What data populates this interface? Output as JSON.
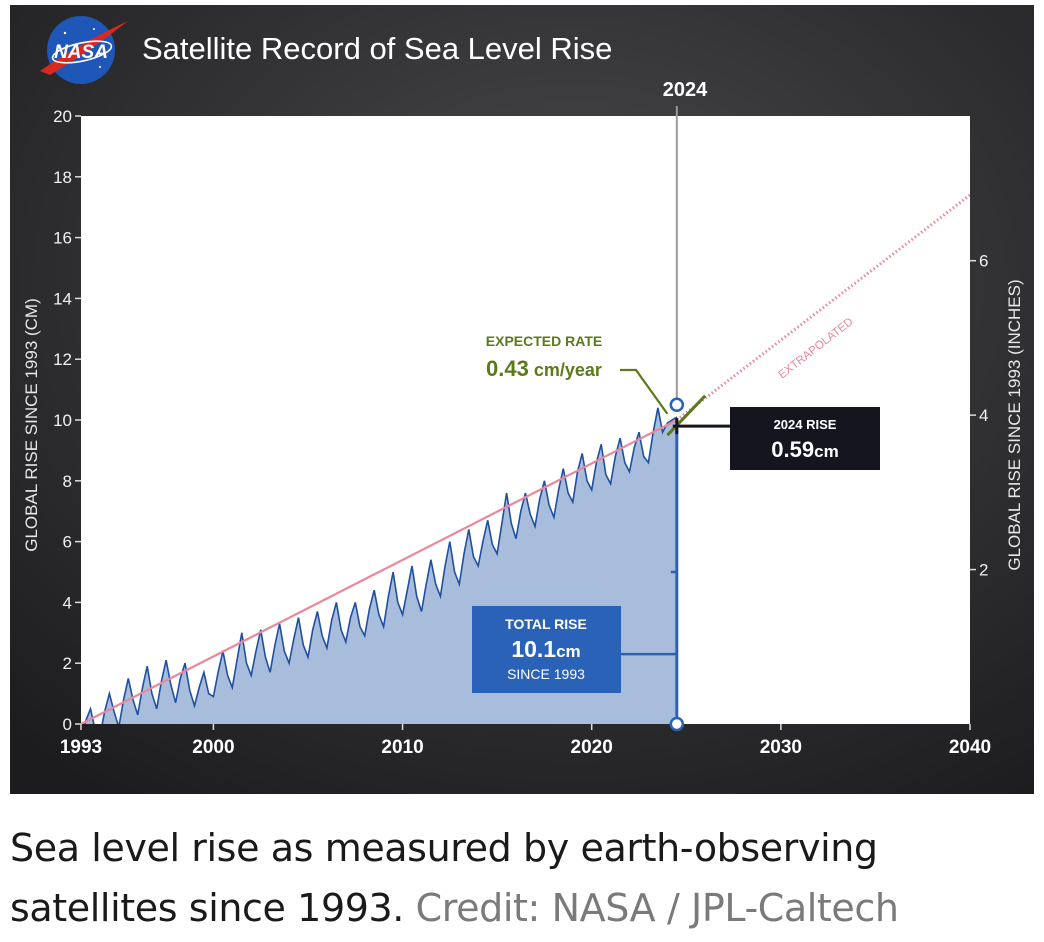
{
  "logo": {
    "text": "NASA"
  },
  "chart_data": {
    "type": "area",
    "title": "Satellite Record of Sea Level Rise",
    "ylabel": "GLOBAL RISE SINCE 1993 (CM)",
    "ylabel_right": "GLOBAL RISE SINCE 1993 (INCHES)",
    "xlim": [
      1993,
      2040
    ],
    "ylim": [
      0,
      20
    ],
    "x_ticks": [
      1993,
      2000,
      2010,
      2020,
      2030,
      2040
    ],
    "y_ticks": [
      0,
      2,
      4,
      6,
      8,
      10,
      12,
      14,
      16,
      18,
      20
    ],
    "y_ticks_right": [
      2,
      4,
      6
    ],
    "grid": false,
    "marker_year": 2024,
    "marker_label": "2024",
    "series": [
      {
        "name": "Observed sea level (cm)",
        "style": "filled area, blue",
        "x": [
          1993.0,
          1993.25,
          1993.5,
          1993.75,
          1994.0,
          1994.25,
          1994.5,
          1994.75,
          1995.0,
          1995.25,
          1995.5,
          1995.75,
          1996.0,
          1996.25,
          1996.5,
          1996.75,
          1997.0,
          1997.25,
          1997.5,
          1997.75,
          1998.0,
          1998.25,
          1998.5,
          1998.75,
          1999.0,
          1999.25,
          1999.5,
          1999.75,
          2000.0,
          2000.25,
          2000.5,
          2000.75,
          2001.0,
          2001.25,
          2001.5,
          2001.75,
          2002.0,
          2002.25,
          2002.5,
          2002.75,
          2003.0,
          2003.25,
          2003.5,
          2003.75,
          2004.0,
          2004.25,
          2004.5,
          2004.75,
          2005.0,
          2005.25,
          2005.5,
          2005.75,
          2006.0,
          2006.25,
          2006.5,
          2006.75,
          2007.0,
          2007.25,
          2007.5,
          2007.75,
          2008.0,
          2008.25,
          2008.5,
          2008.75,
          2009.0,
          2009.25,
          2009.5,
          2009.75,
          2010.0,
          2010.25,
          2010.5,
          2010.75,
          2011.0,
          2011.25,
          2011.5,
          2011.75,
          2012.0,
          2012.25,
          2012.5,
          2012.75,
          2013.0,
          2013.25,
          2013.5,
          2013.75,
          2014.0,
          2014.25,
          2014.5,
          2014.75,
          2015.0,
          2015.25,
          2015.5,
          2015.75,
          2016.0,
          2016.25,
          2016.5,
          2016.75,
          2017.0,
          2017.25,
          2017.5,
          2017.75,
          2018.0,
          2018.25,
          2018.5,
          2018.75,
          2019.0,
          2019.25,
          2019.5,
          2019.75,
          2020.0,
          2020.25,
          2020.5,
          2020.75,
          2021.0,
          2021.25,
          2021.5,
          2021.75,
          2022.0,
          2022.25,
          2022.5,
          2022.75,
          2023.0,
          2023.25,
          2023.5,
          2023.75,
          2024.0,
          2024.5
        ],
        "values": [
          -0.6,
          0.1,
          0.5,
          -0.2,
          -0.4,
          0.4,
          1.0,
          0.4,
          -0.1,
          0.8,
          1.5,
          0.8,
          0.3,
          1.2,
          1.9,
          1.0,
          0.5,
          1.4,
          2.1,
          1.3,
          0.7,
          1.5,
          2.0,
          1.1,
          0.6,
          1.2,
          1.7,
          1.0,
          0.9,
          1.7,
          2.4,
          1.6,
          1.2,
          2.1,
          3.0,
          2.0,
          1.6,
          2.4,
          3.1,
          2.2,
          1.7,
          2.6,
          3.3,
          2.4,
          2.0,
          2.8,
          3.5,
          2.6,
          2.2,
          3.1,
          3.7,
          2.9,
          2.5,
          3.4,
          4.0,
          3.1,
          2.7,
          3.5,
          4.0,
          3.2,
          2.9,
          3.8,
          4.4,
          3.6,
          3.2,
          4.2,
          5.0,
          4.0,
          3.6,
          4.4,
          5.2,
          4.2,
          3.7,
          4.6,
          5.4,
          4.6,
          4.2,
          5.2,
          6.0,
          5.0,
          4.6,
          5.6,
          6.4,
          5.5,
          5.2,
          6.0,
          6.7,
          5.9,
          5.6,
          6.6,
          7.6,
          6.6,
          6.1,
          7.0,
          7.6,
          6.9,
          6.5,
          7.4,
          8.0,
          7.2,
          6.8,
          7.7,
          8.4,
          7.6,
          7.3,
          8.3,
          8.9,
          8.0,
          7.7,
          8.6,
          9.2,
          8.2,
          7.9,
          8.8,
          9.4,
          8.6,
          8.3,
          9.1,
          9.6,
          8.8,
          8.6,
          9.6,
          10.4,
          9.6,
          9.9,
          10.1
        ]
      },
      {
        "name": "Trend",
        "style": "line, pink",
        "x": [
          1993,
          2024.5
        ],
        "values": [
          0.0,
          10.0
        ]
      },
      {
        "name": "Extrapolated",
        "style": "dotted line, pink",
        "x": [
          2024.5,
          2040
        ],
        "values": [
          10.0,
          17.4
        ]
      },
      {
        "name": "Expected rate",
        "style": "line, green",
        "x": [
          2024.0,
          2026.0
        ],
        "values": [
          9.5,
          10.8
        ]
      }
    ],
    "annotations": {
      "extrapolated": "EXTRAPOLATED",
      "expected_rate": {
        "label": "EXPECTED RATE",
        "value": "0.43",
        "unit": " cm/year",
        "x": 2024.0,
        "y": 10.2
      },
      "rise_2024": {
        "label": "2024 RISE",
        "value": "0.59",
        "unit": "cm",
        "x": 2024.5,
        "y": 9.8
      },
      "total_rise": {
        "label": "TOTAL RISE",
        "value": "10.1",
        "unit": "cm",
        "note": "SINCE 1993",
        "x": 2024.5,
        "y": 2.3
      },
      "point_top": {
        "x": 2024.5,
        "y": 10.5
      },
      "point_bottom": {
        "x": 2024.5,
        "y": 0
      }
    }
  },
  "caption": {
    "text": "Sea level rise as measured by earth-observing satellites since 1993.",
    "credit": "Credit: NASA / JPL-Caltech"
  },
  "colors": {
    "background": "#2c2c2e",
    "plot_bg": "#ffffff",
    "area_fill": "#a8bddb",
    "area_line": "#1f4fa0",
    "trend": "#e8889a",
    "expected": "#5b7a1a",
    "total_box": "#2a62b8",
    "rise_box": "#151520",
    "marker_line": "#9a9a9a",
    "nasa_blue": "#1e57b8",
    "nasa_red": "#d8281f"
  }
}
